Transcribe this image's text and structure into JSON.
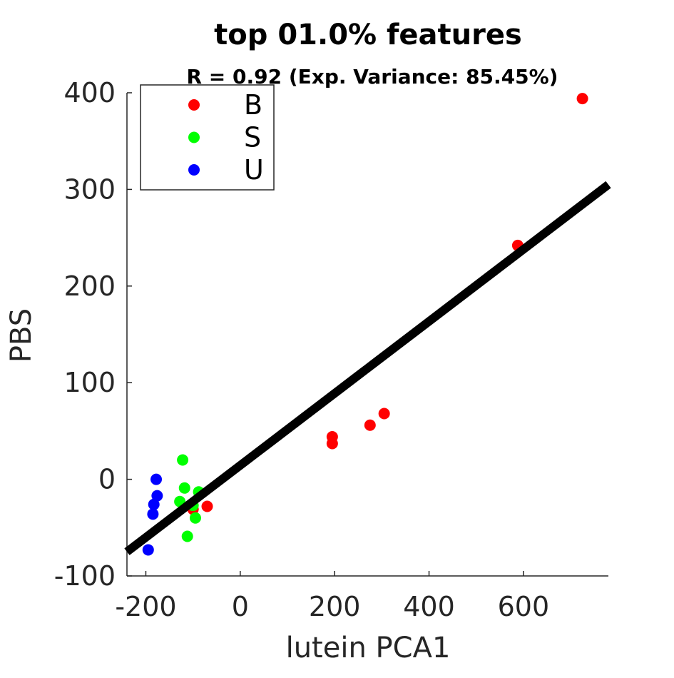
{
  "chart_data": {
    "type": "scatter",
    "title": "top 01.0% features",
    "subtitle": "R = 0.92 (Exp. Variance: 85.45%)",
    "xlabel": "lutein PCA1",
    "ylabel": "PBS",
    "xlim": [
      -240,
      780
    ],
    "ylim": [
      -100,
      400
    ],
    "x_ticks": [
      -200,
      0,
      200,
      400,
      600
    ],
    "x_tick_labels": [
      "-200",
      "0",
      "200",
      "400",
      "600"
    ],
    "y_ticks": [
      -100,
      0,
      100,
      200,
      300,
      400
    ],
    "y_tick_labels": [
      "-100",
      "0",
      "100",
      "200",
      "300",
      "400"
    ],
    "grid": false,
    "legend_position": "top-left",
    "fit_line": {
      "color": "#000000",
      "x": [
        -240,
        780
      ],
      "y": [
        -75,
        305
      ]
    },
    "series": [
      {
        "name": "B",
        "color": "#ff0000",
        "points": [
          [
            725,
            394
          ],
          [
            588,
            242
          ],
          [
            305,
            68
          ],
          [
            275,
            56
          ],
          [
            195,
            44
          ],
          [
            195,
            37
          ],
          [
            -70,
            -28
          ],
          [
            -100,
            -31
          ]
        ]
      },
      {
        "name": "S",
        "color": "#00ff00",
        "points": [
          [
            -122,
            20
          ],
          [
            -118,
            -9
          ],
          [
            -128,
            -23
          ],
          [
            -88,
            -13
          ],
          [
            -100,
            -27
          ],
          [
            -95,
            -40
          ],
          [
            -112,
            -59
          ]
        ]
      },
      {
        "name": "U",
        "color": "#0000ff",
        "points": [
          [
            -178,
            0
          ],
          [
            -176,
            -17
          ],
          [
            -183,
            -26
          ],
          [
            -185,
            -36
          ],
          [
            -195,
            -73
          ]
        ]
      }
    ]
  }
}
